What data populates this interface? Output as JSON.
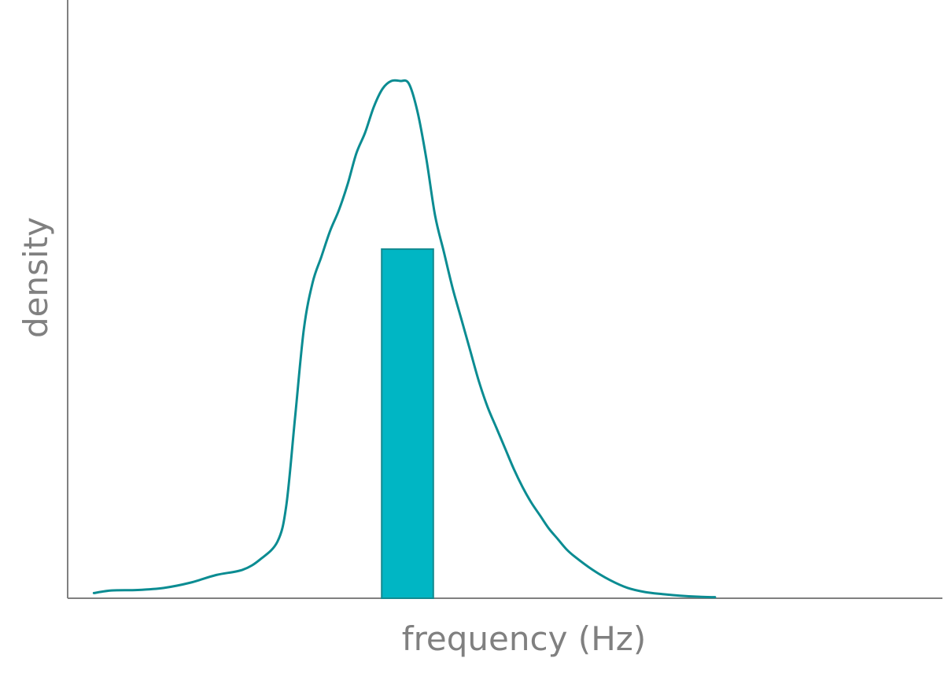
{
  "chart_data": {
    "type": "area",
    "title": "",
    "xlabel": "frequency (Hz)",
    "ylabel": "density",
    "xlim": [
      0,
      1
    ],
    "ylim": [
      0,
      1
    ],
    "grid": false,
    "legend": "",
    "colors": {
      "axis": "#808080",
      "curve": "#0b8c92",
      "bar_fill": "#00b6c4",
      "bar_stroke": "#138a90"
    },
    "series": [
      {
        "type": "line",
        "x": [
          0.03,
          0.05,
          0.08,
          0.11,
          0.14,
          0.17,
          0.2,
          0.22,
          0.24,
          0.25,
          0.26,
          0.27,
          0.28,
          0.29,
          0.3,
          0.31,
          0.32,
          0.33,
          0.34,
          0.35,
          0.36,
          0.37,
          0.38,
          0.39,
          0.4,
          0.41,
          0.42,
          0.43,
          0.44,
          0.45,
          0.46,
          0.47,
          0.48,
          0.49,
          0.5,
          0.51,
          0.52,
          0.53,
          0.54,
          0.55,
          0.56,
          0.57,
          0.58,
          0.6,
          0.62,
          0.64,
          0.66,
          0.68,
          0.7,
          0.72,
          0.74
        ],
        "y": [
          0.01,
          0.015,
          0.016,
          0.02,
          0.03,
          0.045,
          0.055,
          0.075,
          0.11,
          0.18,
          0.35,
          0.52,
          0.61,
          0.66,
          0.71,
          0.75,
          0.8,
          0.86,
          0.9,
          0.95,
          0.985,
          1.0,
          1.0,
          0.995,
          0.94,
          0.85,
          0.74,
          0.67,
          0.6,
          0.54,
          0.48,
          0.42,
          0.37,
          0.33,
          0.29,
          0.25,
          0.215,
          0.185,
          0.16,
          0.135,
          0.115,
          0.095,
          0.08,
          0.055,
          0.035,
          0.02,
          0.012,
          0.008,
          0.005,
          0.003,
          0.002
        ]
      },
      {
        "type": "bar",
        "x_start": 0.359,
        "x_end": 0.418,
        "value": 0.675
      }
    ]
  }
}
